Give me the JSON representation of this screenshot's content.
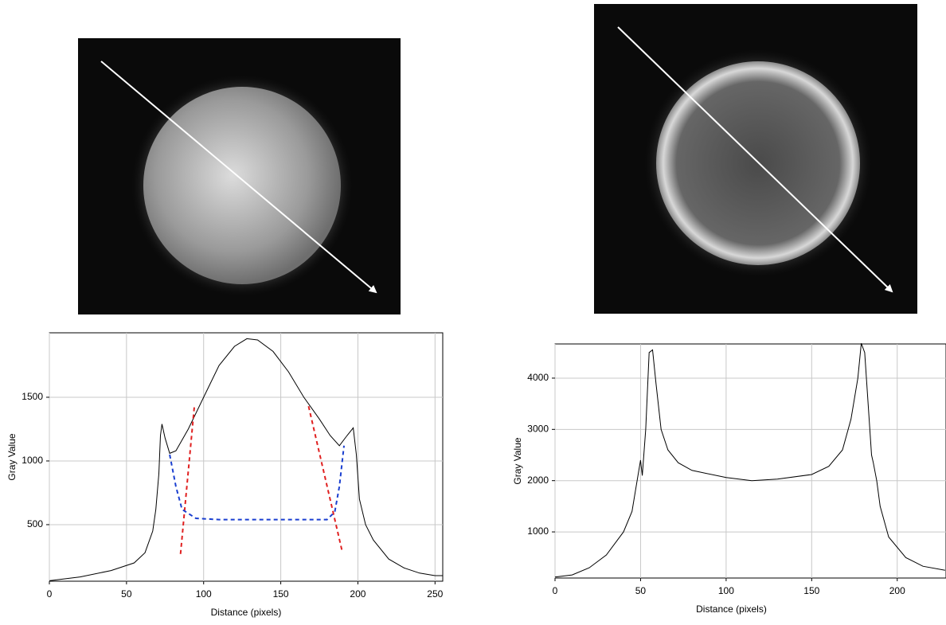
{
  "chart_data": [
    {
      "type": "line",
      "x_label": "Distance (pixels)",
      "y_label": "Gray Value",
      "xlim": [
        0,
        255
      ],
      "ylim": [
        56,
        2006
      ],
      "xticks": [
        0,
        50,
        100,
        150,
        200,
        250
      ],
      "yticks": [
        500,
        1000,
        1500
      ],
      "grid": true,
      "series": [
        {
          "color": "#000000",
          "style": "solid",
          "x": [
            0,
            20,
            40,
            55,
            62,
            67,
            69,
            71,
            72,
            73,
            75,
            78,
            82,
            90,
            100,
            110,
            120,
            128,
            135,
            145,
            155,
            165,
            175,
            182,
            188,
            193,
            197,
            199,
            201,
            205,
            210,
            220,
            230,
            240,
            250,
            255
          ],
          "values": [
            60,
            90,
            140,
            200,
            280,
            450,
            620,
            900,
            1200,
            1290,
            1180,
            1060,
            1080,
            1250,
            1500,
            1750,
            1900,
            1960,
            1950,
            1860,
            1700,
            1500,
            1330,
            1200,
            1120,
            1200,
            1260,
            1050,
            700,
            500,
            380,
            230,
            160,
            120,
            100,
            100
          ]
        },
        {
          "color": "#e02020",
          "style": "dashed",
          "x": [
            85,
            94
          ],
          "values": [
            270,
            1430
          ]
        },
        {
          "color": "#e02020",
          "style": "dashed",
          "x": [
            168,
            190
          ],
          "values": [
            1430,
            280
          ]
        },
        {
          "color": "#1a3fd0",
          "style": "dashed",
          "x": [
            78,
            82,
            86,
            95,
            110,
            180,
            185,
            188,
            191
          ],
          "values": [
            1050,
            800,
            620,
            550,
            540,
            540,
            600,
            800,
            1120
          ]
        }
      ]
    },
    {
      "type": "line",
      "x_label": "Distance (pixels)",
      "y_label": "Gray Value",
      "xlim": [
        0,
        228.5
      ],
      "ylim": [
        100,
        4667
      ],
      "xticks": [
        0,
        50,
        100,
        150,
        200
      ],
      "yticks": [
        1000,
        2000,
        3000,
        4000
      ],
      "grid": true,
      "series": [
        {
          "color": "#000000",
          "style": "solid",
          "x": [
            0,
            10,
            20,
            30,
            40,
            45,
            48,
            50,
            51,
            53,
            55,
            57,
            59,
            62,
            66,
            72,
            80,
            100,
            115,
            130,
            150,
            160,
            168,
            173,
            177,
            179,
            181,
            183,
            185,
            186,
            188,
            190,
            195,
            205,
            215,
            228
          ],
          "values": [
            120,
            160,
            300,
            550,
            1000,
            1400,
            2000,
            2400,
            2100,
            3000,
            4500,
            4550,
            3900,
            3000,
            2600,
            2350,
            2200,
            2060,
            2000,
            2030,
            2120,
            2280,
            2600,
            3200,
            4000,
            4680,
            4500,
            3500,
            2500,
            2350,
            2000,
            1500,
            900,
            500,
            330,
            250
          ]
        }
      ]
    }
  ]
}
